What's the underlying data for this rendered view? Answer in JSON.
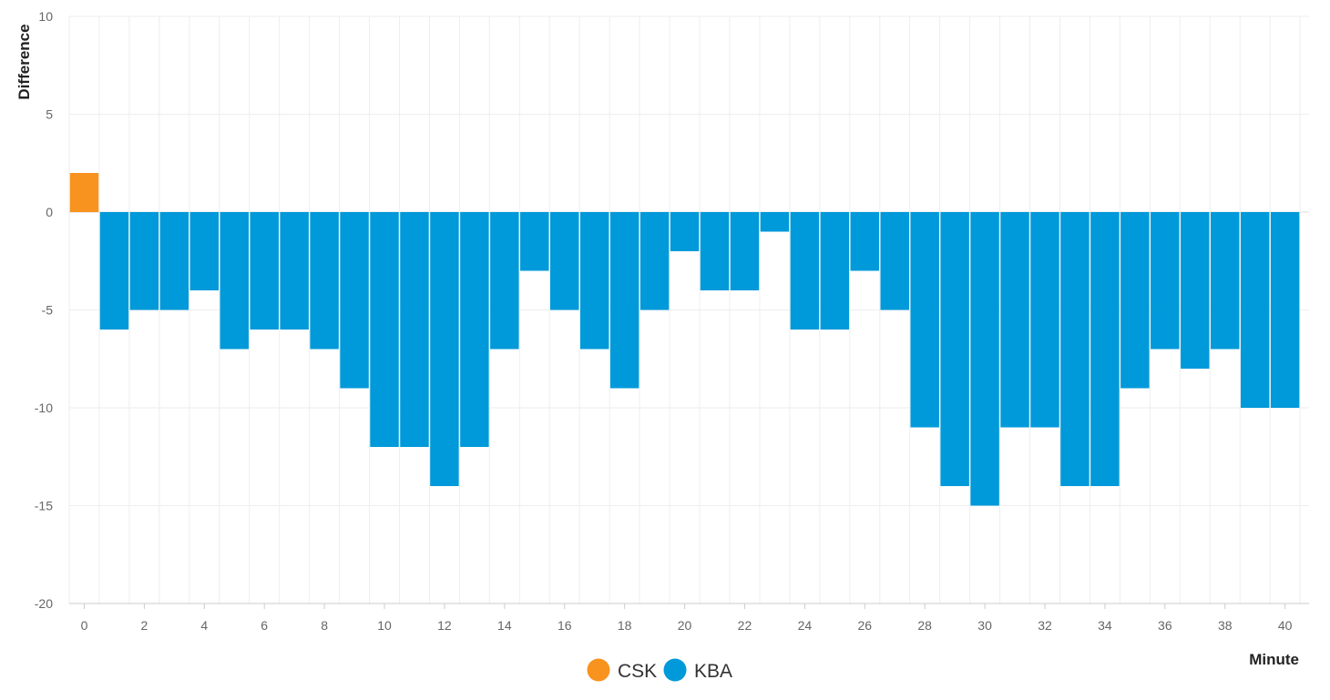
{
  "chart_data": {
    "type": "bar",
    "xlabel": "Minute",
    "ylabel": "Difference",
    "ylim": [
      -20,
      10
    ],
    "yticks": [
      10,
      5,
      0,
      -5,
      -10,
      -15,
      -20
    ],
    "xticks": [
      0,
      2,
      4,
      6,
      8,
      10,
      12,
      14,
      16,
      18,
      20,
      22,
      24,
      26,
      28,
      30,
      32,
      34,
      36,
      38,
      40
    ],
    "categories": [
      0,
      1,
      2,
      3,
      4,
      5,
      6,
      7,
      8,
      9,
      10,
      11,
      12,
      13,
      14,
      15,
      16,
      17,
      18,
      19,
      20,
      21,
      22,
      23,
      24,
      25,
      26,
      27,
      28,
      29,
      30,
      31,
      32,
      33,
      34,
      35,
      36,
      37,
      38,
      39,
      40
    ],
    "values": [
      2,
      -6,
      -5,
      -5,
      -4,
      -7,
      -6,
      -6,
      -7,
      -9,
      -12,
      -12,
      -14,
      -12,
      -7,
      -3,
      -5,
      -7,
      -9,
      -5,
      -2,
      -4,
      -4,
      -1,
      -6,
      -6,
      -3,
      -5,
      -11,
      -14,
      -15,
      -11,
      -11,
      -14,
      -14,
      -9,
      -7,
      -8,
      -7,
      -10,
      -10
    ],
    "series": [
      {
        "name": "CSK",
        "color": "#f7931e"
      },
      {
        "name": "KBA",
        "color": "#0099da"
      }
    ],
    "positive_series": "CSK",
    "negative_series": "KBA",
    "grid": true,
    "legend": "bottom-center"
  }
}
